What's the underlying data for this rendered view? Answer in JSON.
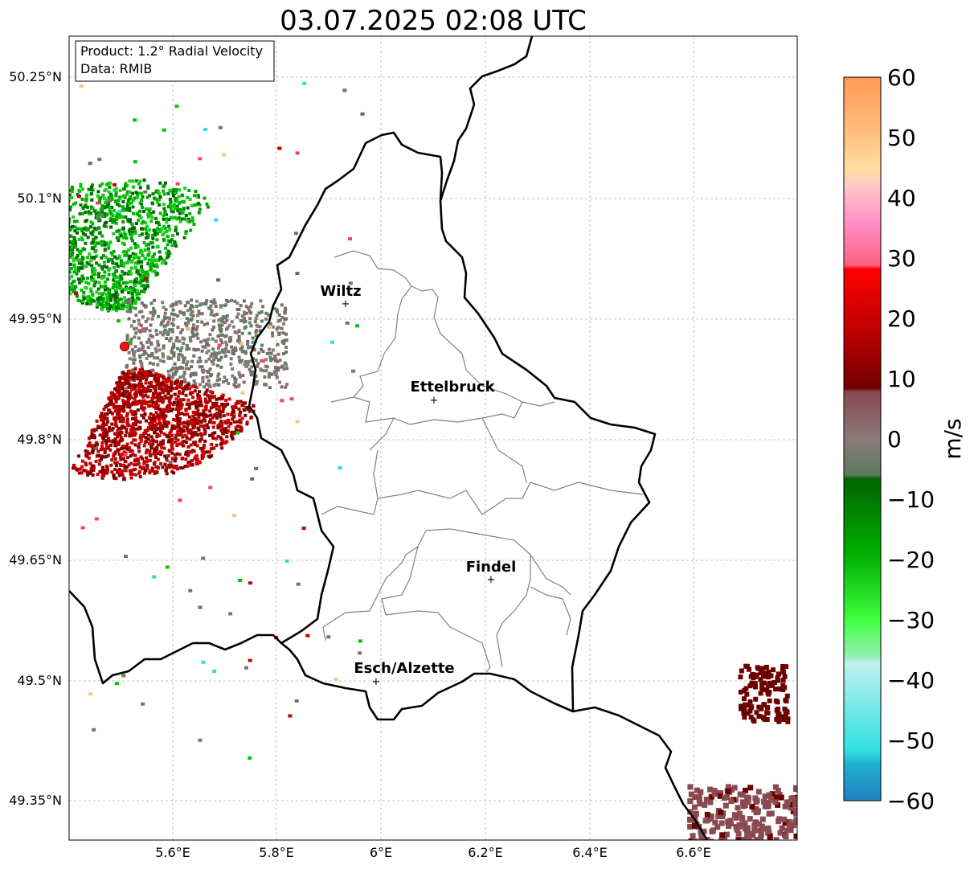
{
  "title": "03.07.2025 02:08 UTC",
  "info_box": {
    "product": "Product: 1.2° Radial Velocity",
    "data": "Data: RMIB"
  },
  "lat_ticks": [
    "50.25°N",
    "50.1°N",
    "49.95°N",
    "49.8°N",
    "49.65°N",
    "49.5°N",
    "49.35°N"
  ],
  "lon_ticks": [
    "5.6°E",
    "5.8°E",
    "6°E",
    "6.2°E",
    "6.4°E",
    "6.6°E"
  ],
  "colorbar": {
    "label": "m/s",
    "ticks": [
      "60",
      "50",
      "40",
      "30",
      "20",
      "10",
      "0",
      "−10",
      "−20",
      "−30",
      "−40",
      "−50",
      "−60"
    ],
    "range": [
      -60,
      60
    ]
  },
  "cities": [
    {
      "name": "Wiltz",
      "lon": 5.93,
      "lat": 49.966
    },
    {
      "name": "Ettelbruck",
      "lon": 6.1,
      "lat": 49.847
    },
    {
      "name": "Findel",
      "lon": 6.21,
      "lat": 49.627
    },
    {
      "name": "Esch/Alzette",
      "lon": 5.99,
      "lat": 49.5
    }
  ],
  "radar_site": {
    "lon": 5.505,
    "lat": 49.914
  },
  "colors": {
    "receding_strong": "#6b0000",
    "receding": "#c40000",
    "near_zero_pos": "#8b6b6e",
    "near_zero_neg": "#5e7d5e",
    "approaching": "#009a00",
    "approaching_strong": "#00c800",
    "border": "#000000",
    "canton": "#808080"
  }
}
